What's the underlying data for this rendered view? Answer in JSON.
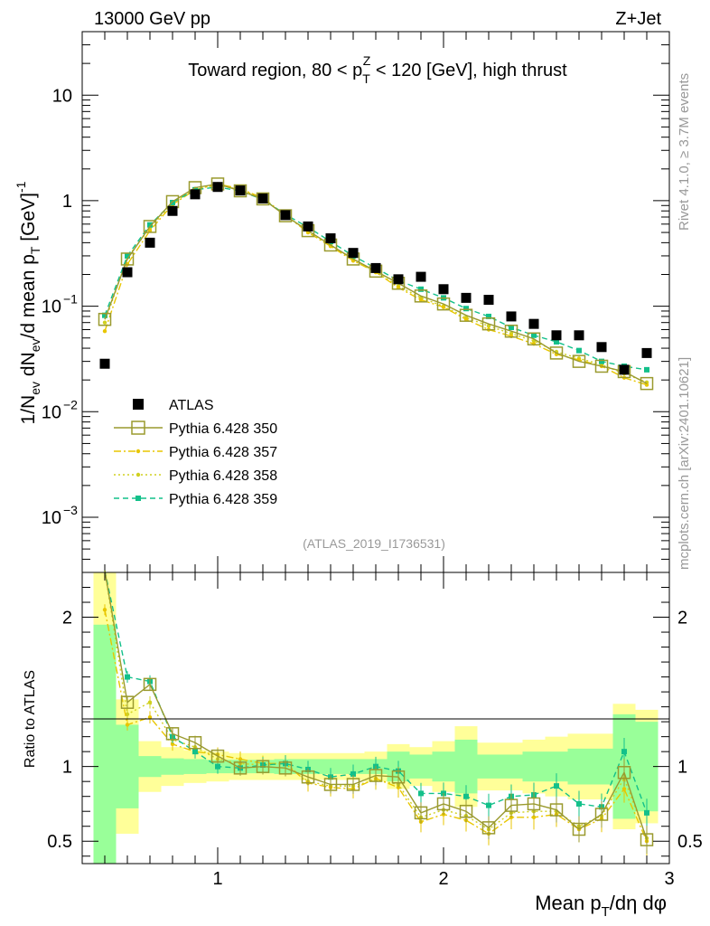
{
  "header": {
    "energy_label": "13000 GeV pp",
    "process_label": "Z+Jet"
  },
  "side_labels": {
    "rivet": "Rivet 4.1.0, ≥ 3.7M events",
    "mcplots": "mcplots.cern.ch [arXiv:2401.10621]"
  },
  "plot_title": "Toward region, 80 < pT^Z < 120 [GeV], high thrust",
  "analysis_id": "(ATLAS_2019_I1736531)",
  "legend": [
    {
      "name": "ATLAS",
      "color": "#000000",
      "marker": "filled-square",
      "line": "none"
    },
    {
      "name": "Pythia 6.428 350",
      "color": "#9a9a2e",
      "marker": "open-square",
      "line": "solid"
    },
    {
      "name": "Pythia 6.428 357",
      "color": "#e8c600",
      "marker": "small-dot",
      "line": "dashdot"
    },
    {
      "name": "Pythia 6.428 358",
      "color": "#d0d020",
      "marker": "small-dot",
      "line": "dotted"
    },
    {
      "name": "Pythia 6.428 359",
      "color": "#13c08a",
      "marker": "small-square",
      "line": "dashed"
    }
  ],
  "chart_data": {
    "type": "line",
    "title": "Toward region, 80 < pT^Z < 120 [GeV], high thrust",
    "xlabel": "Mean pT/dη dφ",
    "ylabel": "1/Nev dNev/d mean pT [GeV]^-1",
    "ratio_ylabel": "Ratio to ATLAS",
    "xlim": [
      0.4,
      3.0
    ],
    "ylim": [
      0.0003,
      40
    ],
    "yscale": "log",
    "ratio_ylim": [
      0.35,
      2.3
    ],
    "x_ticks": [
      "1",
      "2",
      "3"
    ],
    "y_ticks": [
      "10^-3",
      "10^-2",
      "10^-1",
      "1",
      "10"
    ],
    "ratio_y_ticks": [
      "0.5",
      "1",
      "2"
    ],
    "x": [
      0.5,
      0.6,
      0.7,
      0.8,
      0.9,
      1.0,
      1.1,
      1.2,
      1.3,
      1.4,
      1.5,
      1.6,
      1.7,
      1.8,
      1.9,
      2.0,
      2.1,
      2.2,
      2.3,
      2.4,
      2.5,
      2.6,
      2.7,
      2.8,
      2.9
    ],
    "series": [
      {
        "name": "ATLAS",
        "values": [
          0.0285,
          0.21,
          0.4,
          0.8,
          1.15,
          1.35,
          1.25,
          1.05,
          0.73,
          0.57,
          0.44,
          0.32,
          0.23,
          0.18,
          0.19,
          0.145,
          0.12,
          0.115,
          0.08,
          0.068,
          0.053,
          0.053,
          0.041,
          0.025,
          0.036
        ]
      },
      {
        "name": "Pythia 6.428 350",
        "values": [
          0.075,
          0.28,
          0.57,
          0.98,
          1.33,
          1.44,
          1.24,
          1.04,
          0.72,
          0.52,
          0.38,
          0.28,
          0.215,
          0.165,
          0.125,
          0.105,
          0.082,
          0.068,
          0.058,
          0.049,
          0.036,
          0.03,
          0.027,
          0.024,
          0.0185
        ]
      },
      {
        "name": "Pythia 6.428 357",
        "values": [
          0.058,
          0.25,
          0.52,
          0.92,
          1.27,
          1.44,
          1.3,
          1.06,
          0.73,
          0.5,
          0.37,
          0.27,
          0.21,
          0.15,
          0.115,
          0.098,
          0.075,
          0.06,
          0.052,
          0.044,
          0.035,
          0.031,
          0.027,
          0.021,
          0.018
        ]
      },
      {
        "name": "Pythia 6.428 358",
        "values": [
          0.07,
          0.29,
          0.55,
          0.95,
          1.3,
          1.4,
          1.28,
          1.05,
          0.73,
          0.51,
          0.38,
          0.28,
          0.21,
          0.155,
          0.12,
          0.1,
          0.078,
          0.065,
          0.055,
          0.047,
          0.037,
          0.032,
          0.028,
          0.023,
          0.019
        ]
      },
      {
        "name": "Pythia 6.428 359",
        "values": [
          0.082,
          0.3,
          0.59,
          0.96,
          1.27,
          1.35,
          1.23,
          1.03,
          0.74,
          0.56,
          0.41,
          0.3,
          0.23,
          0.175,
          0.145,
          0.12,
          0.095,
          0.08,
          0.063,
          0.053,
          0.046,
          0.038,
          0.03,
          0.027,
          0.025
        ]
      }
    ],
    "ratio_series": [
      {
        "name": "Pythia 6.428 350",
        "values": [
          2.6,
          1.43,
          1.55,
          1.22,
          1.16,
          1.07,
          0.99,
          1.0,
          0.99,
          0.93,
          0.88,
          0.88,
          0.94,
          0.93,
          0.69,
          0.75,
          0.7,
          0.59,
          0.74,
          0.75,
          0.71,
          0.58,
          0.68,
          0.96,
          0.51
        ]
      },
      {
        "name": "Pythia 6.428 357",
        "values": [
          2.05,
          1.28,
          1.33,
          1.15,
          1.1,
          1.08,
          1.05,
          1.02,
          1.02,
          0.89,
          0.86,
          0.85,
          0.92,
          0.86,
          0.63,
          0.68,
          0.64,
          0.55,
          0.66,
          0.66,
          0.68,
          0.58,
          0.65,
          0.85,
          0.5
        ]
      },
      {
        "name": "Pythia 6.428 358",
        "values": [
          2.45,
          1.35,
          1.43,
          1.18,
          1.13,
          1.05,
          1.02,
          1.01,
          1.02,
          0.9,
          0.87,
          0.87,
          0.91,
          0.88,
          0.66,
          0.71,
          0.67,
          0.58,
          0.69,
          0.7,
          0.7,
          0.6,
          0.67,
          0.92,
          0.52
        ]
      },
      {
        "name": "Pythia 6.428 359",
        "values": [
          2.9,
          1.6,
          1.57,
          1.2,
          1.1,
          1.0,
          0.99,
          1.01,
          1.02,
          0.98,
          0.93,
          0.95,
          1.0,
          0.97,
          0.82,
          0.82,
          0.8,
          0.74,
          0.8,
          0.81,
          0.87,
          0.75,
          0.73,
          1.1,
          0.69
        ]
      }
    ],
    "ratio_band_green_rel": [
      0.95,
      0.28,
      0.07,
      0.055,
      0.05,
      0.045,
      0.045,
      0.045,
      0.05,
      0.05,
      0.05,
      0.05,
      0.05,
      0.1,
      0.08,
      0.1,
      0.18,
      0.08,
      0.08,
      0.1,
      0.1,
      0.12,
      0.12,
      0.35,
      0.3
    ],
    "ratio_band_yellow_rel": [
      1.5,
      0.45,
      0.17,
      0.13,
      0.11,
      0.1,
      0.09,
      0.09,
      0.09,
      0.09,
      0.09,
      0.09,
      0.1,
      0.15,
      0.13,
      0.17,
      0.27,
      0.16,
      0.16,
      0.18,
      0.2,
      0.22,
      0.22,
      0.42,
      0.38
    ]
  }
}
